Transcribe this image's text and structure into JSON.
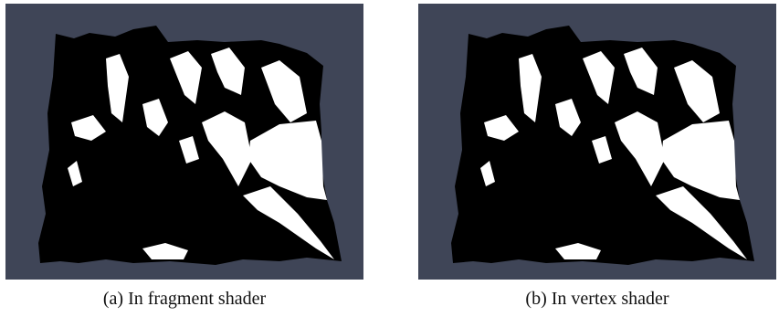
{
  "figure": {
    "panels": [
      {
        "caption": "(a) In fragment shader"
      },
      {
        "caption": "(b) In vertex shader"
      }
    ]
  }
}
